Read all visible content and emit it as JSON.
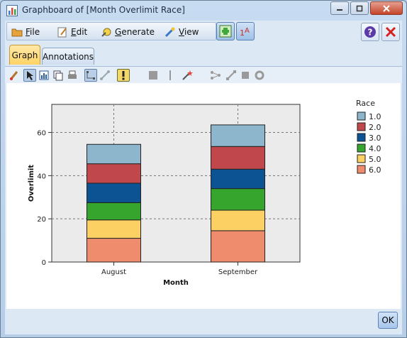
{
  "window": {
    "title": "Graphboard of [Month Overlimit Race]"
  },
  "menu": [
    {
      "label": "File",
      "icon": "folder-icon"
    },
    {
      "label": "Edit",
      "icon": "edit-icon"
    },
    {
      "label": "Generate",
      "icon": "generate-icon"
    },
    {
      "label": "View",
      "icon": "view-icon"
    }
  ],
  "tabs": [
    {
      "label": "Graph",
      "active": true
    },
    {
      "label": "Annotations",
      "active": false
    }
  ],
  "buttons": {
    "ok_label": "OK"
  },
  "colors": {
    "s1": "#8db5cc",
    "s2": "#c0484d",
    "s3": "#0b5393",
    "s4": "#35a52e",
    "s5": "#fcd062",
    "s6": "#ef8c6e",
    "plot_bg": "#ebebeb"
  },
  "chart_data": {
    "type": "bar",
    "stacked": true,
    "xlabel": "Month",
    "ylabel": "Overlimit",
    "categories": [
      "August",
      "September"
    ],
    "ylim": [
      0,
      73
    ],
    "yticks": [
      "0",
      "20",
      "40",
      "60"
    ],
    "grid": true,
    "legend_title": "Race",
    "legend_position": "right",
    "series": [
      {
        "name": "6.0",
        "values": [
          11,
          14.5
        ]
      },
      {
        "name": "5.0",
        "values": [
          8.5,
          9.5
        ]
      },
      {
        "name": "4.0",
        "values": [
          8,
          10
        ]
      },
      {
        "name": "3.0",
        "values": [
          9,
          9
        ]
      },
      {
        "name": "2.0",
        "values": [
          9,
          10.5
        ]
      },
      {
        "name": "1.0",
        "values": [
          9,
          10
        ]
      }
    ]
  }
}
